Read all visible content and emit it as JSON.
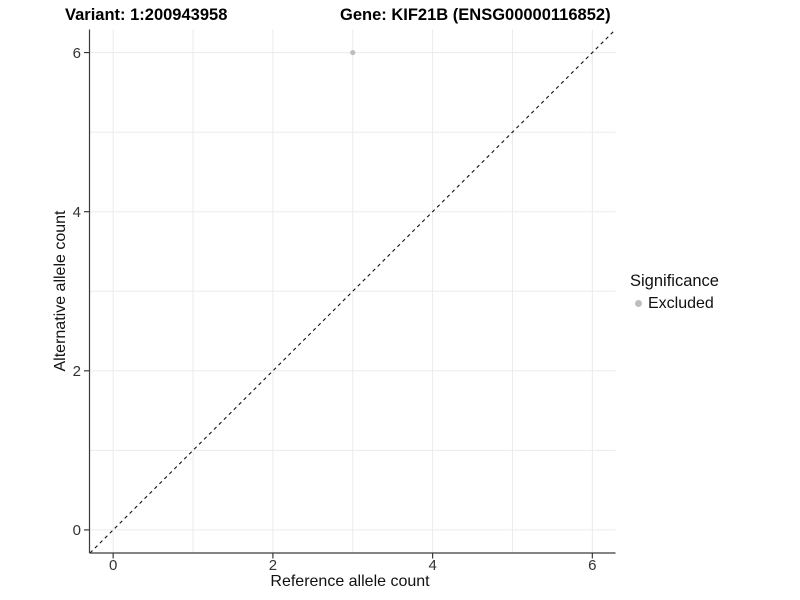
{
  "header": {
    "variant_title": "Variant: 1:200943958",
    "gene_title": "Gene: KIF21B (ENSG00000116852)"
  },
  "chart_data": {
    "type": "scatter",
    "xlabel": "Reference allele count",
    "ylabel": "Alternative allele count",
    "xlim": [
      -0.29,
      6.29
    ],
    "ylim": [
      -0.29,
      6.29
    ],
    "x_ticks": [
      0,
      2,
      4,
      6
    ],
    "y_ticks": [
      0,
      2,
      4,
      6
    ],
    "gridlines": [
      0,
      1,
      2,
      3,
      4,
      5,
      6
    ],
    "grid": "on",
    "points": [
      {
        "x": 3,
        "y": 6,
        "series": "Excluded"
      }
    ],
    "reference_line": {
      "type": "identity y=x",
      "style": "dashed",
      "from": -0.29,
      "to": 6.29
    },
    "legend": {
      "title": "Significance",
      "position": "right",
      "items": [
        {
          "label": "Excluded",
          "color": "#bebebe"
        }
      ]
    },
    "colors": {
      "point": "#bebebe",
      "grid": "#ebebeb",
      "axis": "#3a3a3a",
      "tick_label": "#333333",
      "dashed_line": "#111111"
    }
  }
}
